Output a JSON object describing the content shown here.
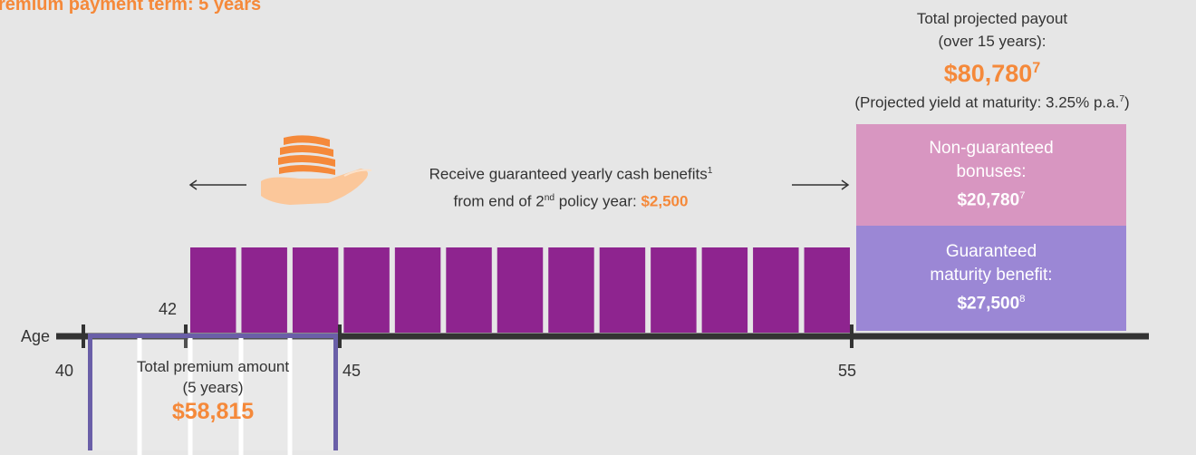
{
  "header": {
    "title": "remium payment term: 5 years"
  },
  "payout": {
    "label_line1": "Total projected payout",
    "label_line2": "(over 15 years):",
    "amount": "$80,780",
    "amount_footnote": "7",
    "yield_text": "(Projected yield at maturity: 3.25% p.a.",
    "yield_footnote": "7",
    "yield_close": ")"
  },
  "cash_benefit": {
    "line1": "Receive guaranteed yearly cash benefits",
    "line1_footnote": "1",
    "line2_prefix": "from end of 2",
    "line2_sup": "nd",
    "line2_suffix": " policy year: ",
    "amount": "$2,500"
  },
  "non_guaranteed": {
    "line1": "Non-guaranteed",
    "line2": "bonuses:",
    "amount": "$20,780",
    "footnote": "7"
  },
  "guaranteed": {
    "line1": "Guaranteed",
    "line2": "maturity benefit:",
    "amount": "$27,500",
    "footnote": "8"
  },
  "timeline": {
    "axis_label": "Age",
    "ages": {
      "a40": "40",
      "a42": "42",
      "a45": "45",
      "a55": "55"
    },
    "cash_bar_count": 13
  },
  "premium": {
    "line1": "Total premium amount",
    "line2": "(5 years)",
    "amount": "$58,815",
    "years": 5
  },
  "colors": {
    "orange": "#f5893a",
    "purple_bar": "#8e248f",
    "pink": "#d896c1",
    "lavender": "#9b87d5",
    "axis": "#333333",
    "premium_border": "#6a5fa8"
  }
}
